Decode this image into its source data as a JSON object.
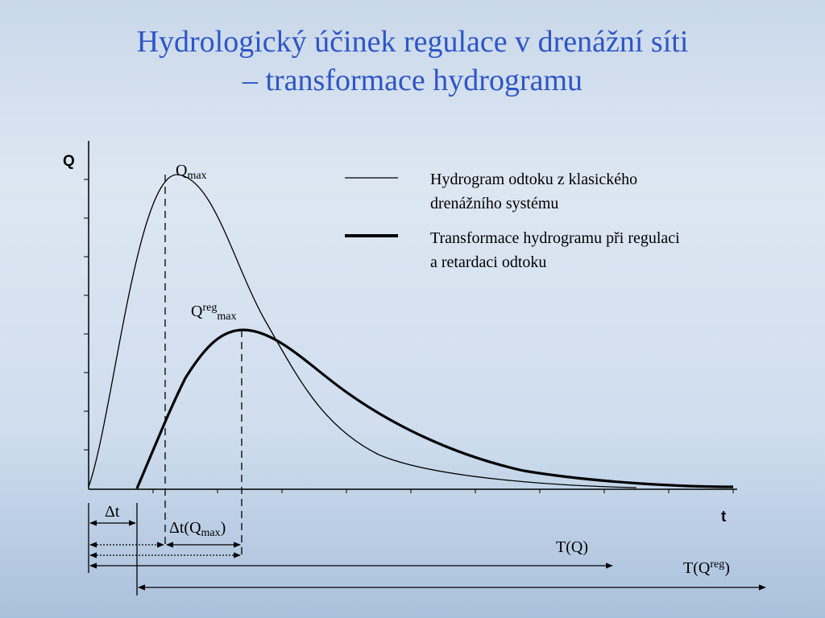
{
  "title": {
    "lines": [
      "Hydrologický účinek regulace v drenážní síti",
      "– transformace hydrogramu"
    ]
  },
  "axes": {
    "y": "Q",
    "x": "t"
  },
  "legend": [
    {
      "lines": [
        "Hydrogram odtoku z klasického",
        "drenážního systému"
      ]
    },
    {
      "lines": [
        "Transformace hydrogramu při regulaci",
        "a retardaci odtoku"
      ]
    }
  ],
  "annotations": {
    "q_max": {
      "base": "Q",
      "sub": "max"
    },
    "q_reg_max": {
      "base": "Q",
      "sup": "reg",
      "sub": "max"
    },
    "delta_t": "Δt",
    "delta_t_qmax": {
      "base": "Δt(Q",
      "sub": "max",
      "end": ")"
    },
    "t_q": "T(Q)",
    "t_qreg": {
      "base": "T(Q",
      "sup": "reg",
      "end": ")"
    }
  }
}
